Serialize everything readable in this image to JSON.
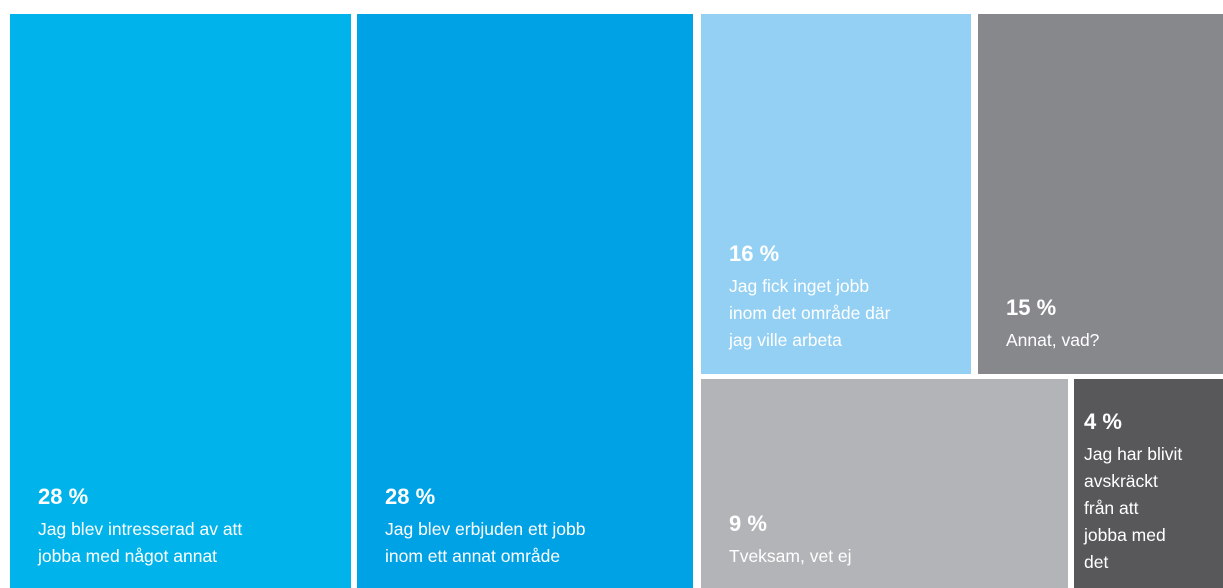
{
  "chart_data": {
    "type": "treemap",
    "unit": "%",
    "items": [
      {
        "value": 28,
        "value_label": "28 %",
        "label": "Jag blev intresserad av att\njobba med något annat",
        "color": "#00B4EB",
        "text_color": "#FFFFFF"
      },
      {
        "value": 28,
        "value_label": "28 %",
        "label": "Jag blev erbjuden ett jobb\ninom ett annat område",
        "color": "#00A2E6",
        "text_color": "#FFFFFF"
      },
      {
        "value": 16,
        "value_label": "16 %",
        "label": "Jag fick inget jobb\ninom det område där\njag ville arbeta",
        "color": "#93D0F3",
        "text_color": "#FFFFFF"
      },
      {
        "value": 15,
        "value_label": "15 %",
        "label": "Annat, vad?",
        "color": "#87888C",
        "text_color": "#FFFFFF"
      },
      {
        "value": 9,
        "value_label": "9 %",
        "label": "Tveksam, vet ej",
        "color": "#B2B4B7",
        "text_color": "#FFFFFF"
      },
      {
        "value": 4,
        "value_label": "4 %",
        "label": "Jag har blivit\navskräckt\nfrån att\njobba med\ndet",
        "color": "#58585A",
        "text_color": "#FFFFFF"
      }
    ]
  }
}
